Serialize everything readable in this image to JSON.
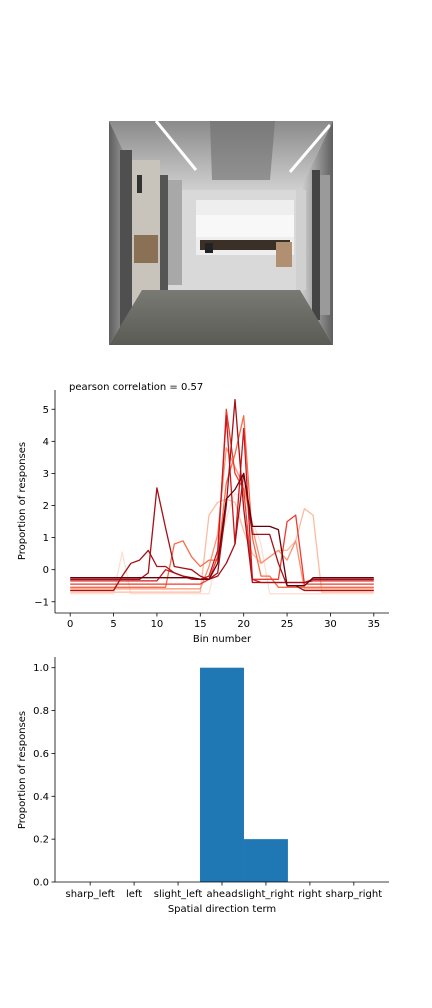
{
  "chart_data": [
    {
      "type": "image",
      "scene": "office corridor with elevators, looking ahead",
      "colors": {
        "ceiling": "#b8b8b8",
        "wall": "#d9d9d9",
        "floor": "#6b6b66",
        "elevator": "#7d7d7d"
      }
    },
    {
      "type": "line",
      "title": "pearson correlation = 0.57",
      "xlabel": "Bin number",
      "ylabel": "Proportion of responses",
      "xlim": [
        -1.75,
        36.75
      ],
      "ylim": [
        -1.35,
        5.6
      ],
      "xticks": [
        0,
        5,
        10,
        15,
        20,
        25,
        30,
        35
      ],
      "yticks": [
        -1,
        0,
        1,
        2,
        3,
        4,
        5
      ],
      "grid": false,
      "x": [
        0,
        1,
        2,
        3,
        4,
        5,
        6,
        7,
        8,
        9,
        10,
        11,
        12,
        13,
        14,
        15,
        16,
        17,
        18,
        19,
        20,
        21,
        22,
        23,
        24,
        25,
        26,
        27,
        28,
        29,
        30,
        31,
        32,
        33,
        34,
        35
      ],
      "series": [
        {
          "color": "#fde0d2",
          "values": [
            -0.75,
            -0.75,
            -0.75,
            -0.75,
            -0.75,
            -0.75,
            0.55,
            -0.75,
            -0.75,
            -0.75,
            -0.75,
            -0.75,
            -0.75,
            -0.75,
            -0.75,
            -0.75,
            -0.75,
            0.5,
            1.6,
            2.4,
            2.1,
            1.5,
            0.8,
            -0.75,
            -0.75,
            -0.75,
            -0.75,
            -0.75,
            -0.75,
            -0.75,
            -0.75,
            -0.75,
            -0.75,
            -0.75,
            -0.75,
            -0.75
          ]
        },
        {
          "color": "#fcbba1",
          "values": [
            -0.7,
            -0.7,
            -0.7,
            -0.7,
            -0.7,
            -0.7,
            -0.7,
            -0.7,
            -0.7,
            -0.7,
            -0.7,
            -0.7,
            -0.7,
            -0.7,
            -0.7,
            -0.7,
            1.7,
            2.1,
            2.2,
            2.1,
            1.2,
            0.5,
            0.2,
            0.4,
            0.6,
            0.6,
            0.9,
            1.9,
            1.7,
            -0.7,
            -0.7,
            -0.7,
            -0.7,
            -0.7,
            -0.7,
            -0.7
          ]
        },
        {
          "color": "#fc9272",
          "values": [
            -0.6,
            -0.6,
            -0.6,
            -0.6,
            -0.6,
            -0.6,
            -0.6,
            -0.6,
            -0.6,
            -0.6,
            -0.6,
            -0.6,
            -0.6,
            -0.6,
            -0.6,
            -0.6,
            0.1,
            1.1,
            3.8,
            3.2,
            2.6,
            1.3,
            0.2,
            0.4,
            0.6,
            0.3,
            0.9,
            -0.6,
            -0.6,
            -0.6,
            -0.6,
            -0.6,
            -0.6,
            -0.6,
            -0.6,
            -0.6
          ]
        },
        {
          "color": "#fb6a4a",
          "values": [
            -0.55,
            -0.55,
            -0.55,
            -0.55,
            -0.55,
            -0.55,
            -0.55,
            -0.55,
            -0.55,
            -0.55,
            -0.55,
            -0.55,
            0.8,
            0.9,
            0.4,
            0.1,
            0.3,
            0.3,
            2.7,
            3.6,
            4.8,
            1.0,
            -0.2,
            -0.2,
            -0.55,
            -0.55,
            -0.55,
            -0.55,
            -0.55,
            -0.55,
            -0.55,
            -0.55,
            -0.55,
            -0.55,
            -0.55,
            -0.55
          ]
        },
        {
          "color": "#ef3b2c",
          "values": [
            -0.45,
            -0.45,
            -0.45,
            -0.45,
            -0.45,
            -0.45,
            -0.45,
            -0.45,
            -0.45,
            -0.45,
            -0.45,
            -0.45,
            -0.45,
            -0.45,
            -0.45,
            -0.45,
            -0.3,
            0.4,
            5.0,
            3.0,
            2.5,
            -0.3,
            -0.3,
            -0.3,
            -0.3,
            1.5,
            1.7,
            -0.45,
            -0.45,
            -0.45,
            -0.45,
            -0.45,
            -0.45,
            -0.45,
            -0.45,
            -0.45
          ]
        },
        {
          "color": "#cb181d",
          "values": [
            -0.35,
            -0.35,
            -0.35,
            -0.35,
            -0.35,
            -0.35,
            -0.35,
            -0.35,
            -0.35,
            -0.35,
            -0.35,
            0.0,
            -0.1,
            -0.2,
            -0.3,
            -0.3,
            -0.2,
            0.6,
            4.8,
            0.8,
            4.4,
            -0.3,
            -0.4,
            -0.4,
            -0.4,
            -0.4,
            -0.4,
            -0.4,
            -0.35,
            -0.35,
            -0.35,
            -0.35,
            -0.35,
            -0.35,
            -0.35,
            -0.35
          ]
        },
        {
          "color": "#a50f15",
          "values": [
            -0.3,
            -0.3,
            -0.3,
            -0.3,
            -0.3,
            -0.3,
            -0.3,
            -0.3,
            -0.3,
            -0.1,
            2.55,
            1.3,
            0.1,
            0.05,
            0.0,
            -0.2,
            -0.3,
            -0.1,
            2.0,
            5.3,
            1.9,
            -0.4,
            -0.4,
            -0.4,
            -0.4,
            -0.4,
            -0.4,
            -0.4,
            -0.3,
            -0.3,
            -0.3,
            -0.3,
            -0.3,
            -0.3,
            -0.3,
            -0.3
          ]
        },
        {
          "color": "#a50f15",
          "values": [
            -0.65,
            -0.65,
            -0.65,
            -0.65,
            -0.65,
            -0.65,
            -0.2,
            0.2,
            0.3,
            0.6,
            0.1,
            0.1,
            -0.1,
            -0.2,
            -0.25,
            -0.3,
            -0.3,
            -0.2,
            0.2,
            0.8,
            3.0,
            1.1,
            1.1,
            1.1,
            0.2,
            -0.5,
            -0.5,
            -0.65,
            -0.65,
            -0.65,
            -0.65,
            -0.65,
            -0.65,
            -0.65,
            -0.65,
            -0.65
          ]
        },
        {
          "color": "#67000d",
          "values": [
            -0.25,
            -0.25,
            -0.25,
            -0.25,
            -0.25,
            -0.25,
            -0.25,
            -0.25,
            -0.25,
            -0.25,
            -0.25,
            -0.25,
            -0.25,
            -0.25,
            -0.25,
            -0.3,
            -0.3,
            0.2,
            2.2,
            2.5,
            3.0,
            1.35,
            1.35,
            1.35,
            1.25,
            -0.5,
            -0.5,
            -0.5,
            -0.25,
            -0.25,
            -0.25,
            -0.25,
            -0.25,
            -0.25,
            -0.25,
            -0.25
          ]
        }
      ]
    },
    {
      "type": "bar",
      "xlabel": "Spatial direction term",
      "ylabel": "Proportion of responses",
      "ylim": [
        0,
        1.05
      ],
      "yticks": [
        0.0,
        0.2,
        0.4,
        0.6,
        0.8,
        1.0
      ],
      "ytick_labels": [
        "0.0",
        "0.2",
        "0.4",
        "0.6",
        "0.8",
        "1.0"
      ],
      "categories": [
        "sharp_left",
        "left",
        "slight_left",
        "ahead",
        "slight_right",
        "right",
        "sharp_right"
      ],
      "values": [
        0,
        0,
        0,
        1.0,
        0.2,
        0,
        0
      ],
      "bar_color": "#1f77b4",
      "grid": false
    }
  ]
}
